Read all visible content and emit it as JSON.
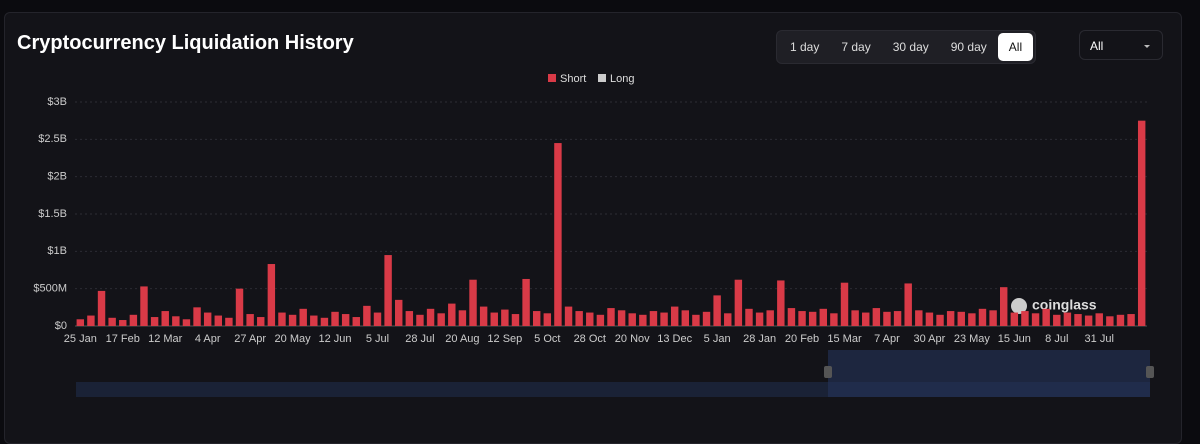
{
  "header": {
    "title": "Cryptocurrency Liquidation History"
  },
  "controls": {
    "ranges": [
      "1 day",
      "7 day",
      "30 day",
      "90 day",
      "All"
    ],
    "active_index": 4,
    "dropdown": "All"
  },
  "watermark": "coinglass",
  "chart_data": {
    "type": "bar",
    "grid": true,
    "categories": [
      "25 Jan",
      null,
      null,
      null,
      "17 Feb",
      null,
      null,
      null,
      "12 Mar",
      null,
      null,
      null,
      "4 Apr",
      null,
      null,
      null,
      "27 Apr",
      null,
      null,
      null,
      "20 May",
      null,
      null,
      null,
      "12 Jun",
      null,
      null,
      null,
      "5 Jul",
      null,
      null,
      null,
      "28 Jul",
      null,
      null,
      null,
      "20 Aug",
      null,
      null,
      null,
      "12 Sep",
      null,
      null,
      null,
      "5 Oct",
      null,
      null,
      null,
      "28 Oct",
      null,
      null,
      null,
      "20 Nov",
      null,
      null,
      null,
      "13 Dec",
      null,
      null,
      null,
      "5 Jan",
      null,
      null,
      null,
      "28 Jan",
      null,
      null,
      null,
      "20 Feb",
      null,
      null,
      null,
      "15 Mar",
      null,
      null,
      null,
      "7 Apr",
      null,
      null,
      null,
      "30 Apr",
      null,
      null,
      null,
      "23 May",
      null,
      null,
      null,
      "15 Jun",
      null,
      null,
      null,
      "8 Jul",
      null,
      null,
      null,
      "31 Jul",
      null,
      null,
      null,
      null
    ],
    "series": [
      {
        "name": "Short",
        "color": "#d93a47",
        "values": [
          90000000,
          140000000,
          470000000,
          110000000,
          80000000,
          150000000,
          530000000,
          120000000,
          200000000,
          130000000,
          90000000,
          250000000,
          180000000,
          140000000,
          110000000,
          500000000,
          160000000,
          120000000,
          830000000,
          180000000,
          150000000,
          230000000,
          140000000,
          110000000,
          190000000,
          160000000,
          120000000,
          270000000,
          180000000,
          950000000,
          350000000,
          200000000,
          150000000,
          230000000,
          170000000,
          300000000,
          210000000,
          620000000,
          260000000,
          180000000,
          220000000,
          160000000,
          630000000,
          200000000,
          170000000,
          2450000000,
          260000000,
          200000000,
          180000000,
          150000000,
          240000000,
          210000000,
          170000000,
          150000000,
          200000000,
          180000000,
          260000000,
          210000000,
          150000000,
          190000000,
          410000000,
          170000000,
          620000000,
          230000000,
          180000000,
          210000000,
          610000000,
          240000000,
          200000000,
          190000000,
          230000000,
          170000000,
          580000000,
          210000000,
          180000000,
          240000000,
          190000000,
          200000000,
          570000000,
          210000000,
          180000000,
          150000000,
          200000000,
          190000000,
          170000000,
          230000000,
          210000000,
          520000000,
          180000000,
          200000000,
          170000000,
          230000000,
          150000000,
          180000000,
          160000000,
          140000000,
          170000000,
          130000000,
          150000000,
          160000000,
          2750000000
        ]
      },
      {
        "name": "Long",
        "color": "#cccccc"
      }
    ],
    "ylim": [
      0,
      3000000000
    ],
    "yticks": [
      {
        "value": 0,
        "label": "$0"
      },
      {
        "value": 500000000,
        "label": "$500M"
      },
      {
        "value": 1000000000,
        "label": "$1B"
      },
      {
        "value": 1500000000,
        "label": "$1.5B"
      },
      {
        "value": 2000000000,
        "label": "$2B"
      },
      {
        "value": 2500000000,
        "label": "$2.5B"
      },
      {
        "value": 3000000000,
        "label": "$3B"
      }
    ]
  }
}
